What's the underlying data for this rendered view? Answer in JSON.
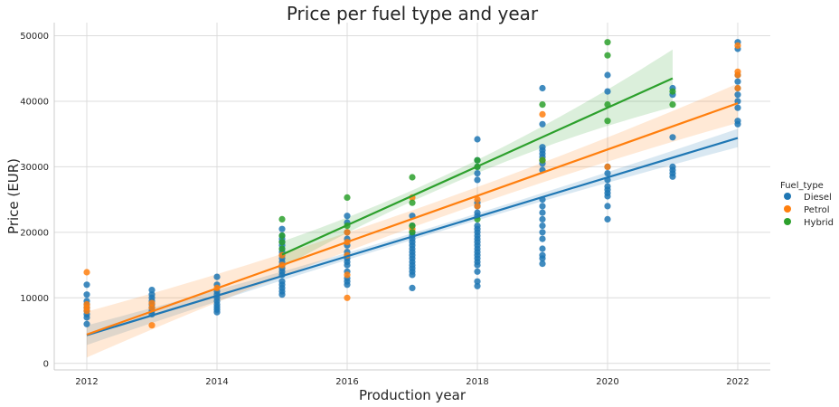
{
  "chart_data": {
    "type": "scatter",
    "title": "Price per fuel type and year",
    "xlabel": "Production year",
    "ylabel": "Price (EUR)",
    "xlim": [
      2011.5,
      2022.5
    ],
    "ylim": [
      -1000,
      52000
    ],
    "xticks": [
      "2012",
      "2014",
      "2016",
      "2018",
      "2020",
      "2022"
    ],
    "yticks": [
      "0",
      "10000",
      "20000",
      "30000",
      "40000",
      "50000"
    ],
    "grid": true,
    "legend": {
      "title": "Fuel_type",
      "placement": "right",
      "entries": [
        "Diesel",
        "Petrol",
        "Hybrid"
      ]
    },
    "series": [
      {
        "name": "Diesel",
        "color": "#1f77b4",
        "points": [
          [
            2012,
            6000
          ],
          [
            2012,
            7000
          ],
          [
            2012,
            7500
          ],
          [
            2012,
            8000
          ],
          [
            2012,
            8500
          ],
          [
            2012,
            9000
          ],
          [
            2012,
            9500
          ],
          [
            2012,
            10500
          ],
          [
            2012,
            12000
          ],
          [
            2013,
            7500
          ],
          [
            2013,
            8000
          ],
          [
            2013,
            8500
          ],
          [
            2013,
            9000
          ],
          [
            2013,
            9500
          ],
          [
            2013,
            10000
          ],
          [
            2013,
            10500
          ],
          [
            2013,
            11200
          ],
          [
            2014,
            7800
          ],
          [
            2014,
            8200
          ],
          [
            2014,
            8600
          ],
          [
            2014,
            9000
          ],
          [
            2014,
            9500
          ],
          [
            2014,
            10000
          ],
          [
            2014,
            10500
          ],
          [
            2014,
            11000
          ],
          [
            2014,
            12000
          ],
          [
            2014,
            13200
          ],
          [
            2015,
            10500
          ],
          [
            2015,
            11000
          ],
          [
            2015,
            11500
          ],
          [
            2015,
            12000
          ],
          [
            2015,
            12500
          ],
          [
            2015,
            13500
          ],
          [
            2015,
            14000
          ],
          [
            2015,
            14500
          ],
          [
            2015,
            15000
          ],
          [
            2015,
            15500
          ],
          [
            2015,
            16000
          ],
          [
            2015,
            16500
          ],
          [
            2015,
            17000
          ],
          [
            2015,
            17500
          ],
          [
            2015,
            18000
          ],
          [
            2015,
            18500
          ],
          [
            2015,
            19000
          ],
          [
            2015,
            19500
          ],
          [
            2015,
            20500
          ],
          [
            2016,
            12000
          ],
          [
            2016,
            12500
          ],
          [
            2016,
            13000
          ],
          [
            2016,
            14000
          ],
          [
            2016,
            15000
          ],
          [
            2016,
            15500
          ],
          [
            2016,
            16000
          ],
          [
            2016,
            16500
          ],
          [
            2016,
            17000
          ],
          [
            2016,
            18000
          ],
          [
            2016,
            19000
          ],
          [
            2016,
            20000
          ],
          [
            2016,
            21500
          ],
          [
            2016,
            22500
          ],
          [
            2017,
            11500
          ],
          [
            2017,
            13500
          ],
          [
            2017,
            14000
          ],
          [
            2017,
            14500
          ],
          [
            2017,
            15000
          ],
          [
            2017,
            15500
          ],
          [
            2017,
            16000
          ],
          [
            2017,
            16500
          ],
          [
            2017,
            17000
          ],
          [
            2017,
            17500
          ],
          [
            2017,
            18000
          ],
          [
            2017,
            18500
          ],
          [
            2017,
            19000
          ],
          [
            2017,
            19500
          ],
          [
            2017,
            20000
          ],
          [
            2017,
            21000
          ],
          [
            2017,
            22500
          ],
          [
            2018,
            11800
          ],
          [
            2018,
            12500
          ],
          [
            2018,
            14000
          ],
          [
            2018,
            15000
          ],
          [
            2018,
            15500
          ],
          [
            2018,
            16000
          ],
          [
            2018,
            16500
          ],
          [
            2018,
            17000
          ],
          [
            2018,
            17500
          ],
          [
            2018,
            18000
          ],
          [
            2018,
            18500
          ],
          [
            2018,
            19000
          ],
          [
            2018,
            19500
          ],
          [
            2018,
            20000
          ],
          [
            2018,
            20500
          ],
          [
            2018,
            21000
          ],
          [
            2018,
            22500
          ],
          [
            2018,
            23000
          ],
          [
            2018,
            24000
          ],
          [
            2018,
            24500
          ],
          [
            2018,
            28000
          ],
          [
            2018,
            29000
          ],
          [
            2018,
            30000
          ],
          [
            2018,
            31000
          ],
          [
            2018,
            34200
          ],
          [
            2019,
            15200
          ],
          [
            2019,
            16000
          ],
          [
            2019,
            16500
          ],
          [
            2019,
            17500
          ],
          [
            2019,
            19000
          ],
          [
            2019,
            20000
          ],
          [
            2019,
            21000
          ],
          [
            2019,
            22000
          ],
          [
            2019,
            23000
          ],
          [
            2019,
            24000
          ],
          [
            2019,
            25000
          ],
          [
            2019,
            29500
          ],
          [
            2019,
            30500
          ],
          [
            2019,
            31500
          ],
          [
            2019,
            32000
          ],
          [
            2019,
            32500
          ],
          [
            2019,
            33000
          ],
          [
            2019,
            36500
          ],
          [
            2019,
            42000
          ],
          [
            2020,
            22000
          ],
          [
            2020,
            24000
          ],
          [
            2020,
            25500
          ],
          [
            2020,
            26000
          ],
          [
            2020,
            26500
          ],
          [
            2020,
            27000
          ],
          [
            2020,
            28000
          ],
          [
            2020,
            29000
          ],
          [
            2020,
            30000
          ],
          [
            2020,
            41500
          ],
          [
            2020,
            44000
          ],
          [
            2021,
            28500
          ],
          [
            2021,
            29000
          ],
          [
            2021,
            29500
          ],
          [
            2021,
            30000
          ],
          [
            2021,
            34500
          ],
          [
            2021,
            41000
          ],
          [
            2021,
            42000
          ],
          [
            2022,
            36500
          ],
          [
            2022,
            37000
          ],
          [
            2022,
            39000
          ],
          [
            2022,
            40000
          ],
          [
            2022,
            41000
          ],
          [
            2022,
            42000
          ],
          [
            2022,
            43000
          ],
          [
            2022,
            44000
          ],
          [
            2022,
            48000
          ],
          [
            2022,
            49000
          ]
        ],
        "fit": [
          [
            2012,
            4300
          ],
          [
            2022,
            34400
          ]
        ],
        "ci_half_width": {
          "2012": 1500,
          "2017": 500,
          "2022": 1400
        }
      },
      {
        "name": "Petrol",
        "color": "#ff7f0e",
        "points": [
          [
            2012,
            8000
          ],
          [
            2012,
            8500
          ],
          [
            2012,
            9000
          ],
          [
            2012,
            13900
          ],
          [
            2013,
            5800
          ],
          [
            2013,
            8500
          ],
          [
            2013,
            9200
          ],
          [
            2014,
            11500
          ],
          [
            2015,
            15000
          ],
          [
            2015,
            16500
          ],
          [
            2016,
            10000
          ],
          [
            2016,
            13500
          ],
          [
            2016,
            16500
          ],
          [
            2016,
            18500
          ],
          [
            2016,
            20000
          ],
          [
            2017,
            20500
          ],
          [
            2017,
            25300
          ],
          [
            2018,
            24000
          ],
          [
            2018,
            25000
          ],
          [
            2019,
            31000
          ],
          [
            2019,
            38000
          ],
          [
            2020,
            30000
          ],
          [
            2022,
            42000
          ],
          [
            2022,
            44000
          ],
          [
            2022,
            44500
          ],
          [
            2022,
            48500
          ]
        ],
        "fit": [
          [
            2012,
            4400
          ],
          [
            2022,
            39700
          ]
        ],
        "ci_half_width": {
          "2012": 3500,
          "2017": 1300,
          "2022": 3000
        }
      },
      {
        "name": "Hybrid",
        "color": "#2ca02c",
        "points": [
          [
            2015,
            22000
          ],
          [
            2015,
            19500
          ],
          [
            2015,
            18500
          ],
          [
            2015,
            17500
          ],
          [
            2016,
            25300
          ],
          [
            2016,
            21000
          ],
          [
            2017,
            28400
          ],
          [
            2017,
            24500
          ],
          [
            2017,
            21000
          ],
          [
            2017,
            20000
          ],
          [
            2018,
            31000
          ],
          [
            2018,
            30000
          ],
          [
            2018,
            22000
          ],
          [
            2019,
            39500
          ],
          [
            2019,
            31000
          ],
          [
            2020,
            49000
          ],
          [
            2020,
            47000
          ],
          [
            2020,
            39500
          ],
          [
            2020,
            37000
          ],
          [
            2021,
            41500
          ],
          [
            2021,
            39500
          ]
        ],
        "fit": [
          [
            2015,
            16600
          ],
          [
            2021,
            43500
          ]
        ],
        "ci_half_width": {
          "2015": 2000,
          "2018": 1000,
          "2021": 4400
        }
      }
    ]
  }
}
